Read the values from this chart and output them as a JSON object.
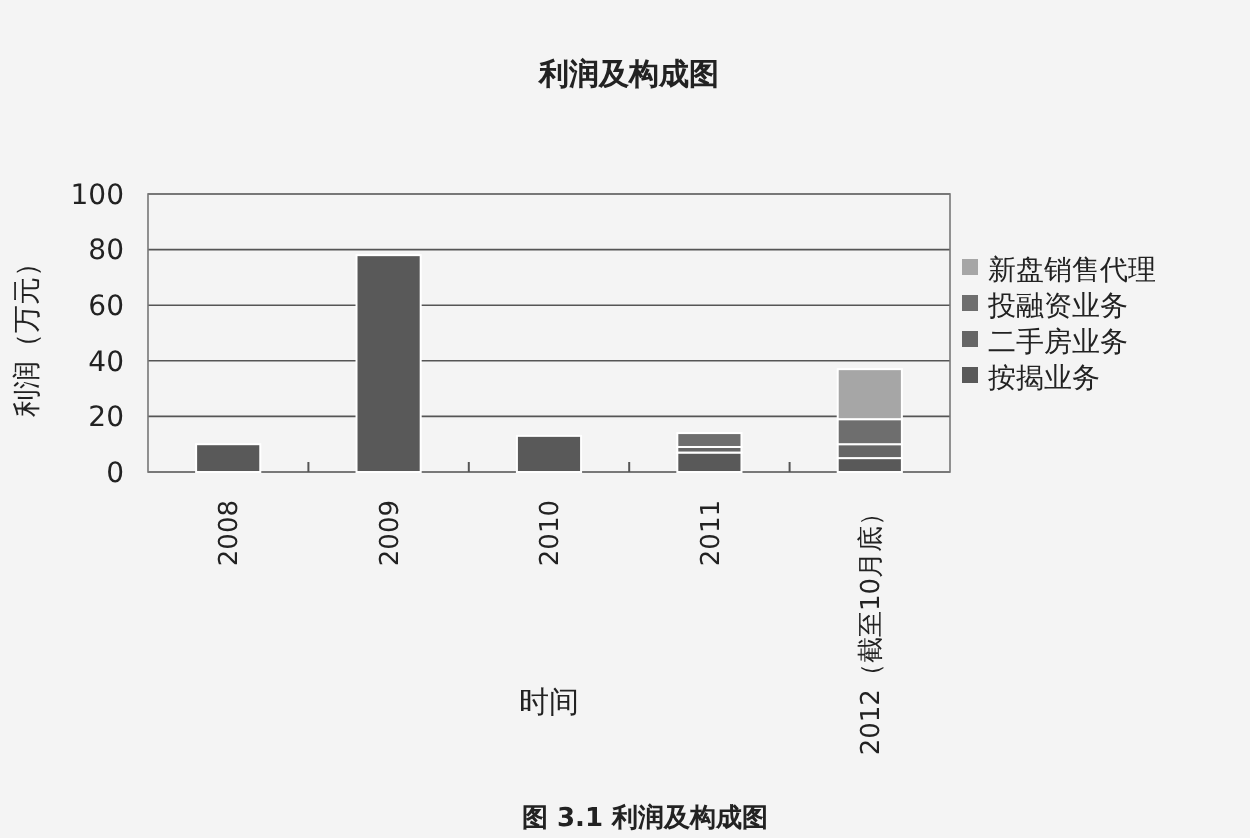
{
  "chart_data": {
    "type": "bar",
    "title": "利润及构成图",
    "xlabel": "时间",
    "ylabel": "利润（万元）",
    "categories": [
      "2008",
      "2009",
      "2010",
      "2011",
      "2012（截至10月底）"
    ],
    "series": [
      {
        "name": "按揭业务",
        "color": "#595959",
        "values": [
          10,
          78,
          13,
          7,
          5
        ]
      },
      {
        "name": "二手房业务",
        "color": "#666666",
        "values": [
          0,
          0,
          0,
          2,
          5
        ]
      },
      {
        "name": "投融资业务",
        "color": "#6e6e6e",
        "values": [
          0,
          0,
          0,
          5,
          9
        ]
      },
      {
        "name": "新盘销售代理",
        "color": "#a6a6a6",
        "values": [
          0,
          0,
          0,
          0,
          18
        ]
      }
    ],
    "stacked": true,
    "ylim": [
      0,
      100
    ],
    "yticks": [
      0,
      20,
      40,
      60,
      80,
      100
    ],
    "grid": "y",
    "legend": "right",
    "annotations": [
      "图 3.1 利润及构成图"
    ]
  }
}
